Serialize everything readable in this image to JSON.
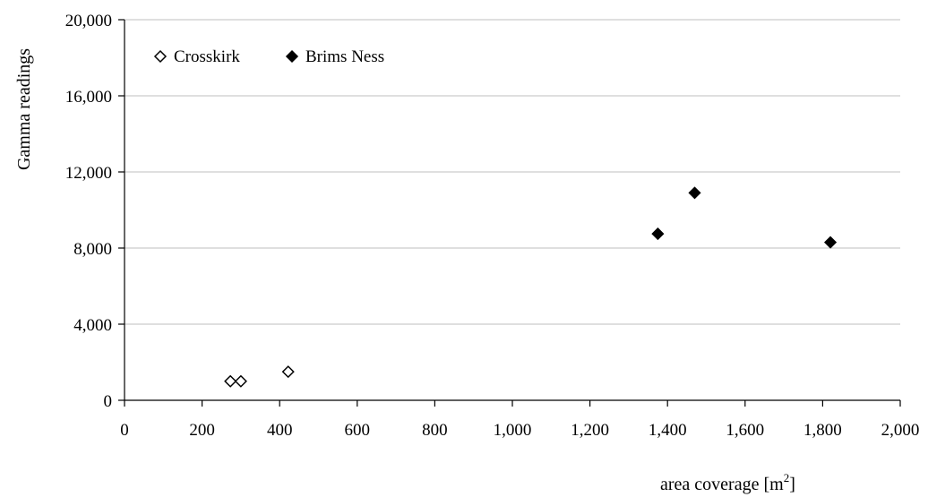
{
  "chart_data": {
    "type": "scatter",
    "title": "",
    "xlabel": "area coverage [m",
    "xlabel_superscript": "2",
    "xlabel_suffix": "]",
    "ylabel": "Gamma readings",
    "xlim": [
      0,
      2000
    ],
    "ylim": [
      0,
      20000
    ],
    "xticks": [
      0,
      200,
      400,
      600,
      800,
      1000,
      1200,
      1400,
      1600,
      1800,
      2000
    ],
    "yticks": [
      0,
      4000,
      8000,
      12000,
      16000,
      20000
    ],
    "xtick_labels": [
      "0",
      "200",
      "400",
      "600",
      "800",
      "1,000",
      "1,200",
      "1,400",
      "1,600",
      "1,800",
      "2,000"
    ],
    "ytick_labels": [
      "0",
      "4,000",
      "8,000",
      "12,000",
      "16,000",
      "20,000"
    ],
    "grid": "horizontal",
    "legend_position": "top-left",
    "series": [
      {
        "name": "Crosskirk",
        "marker": "diamond-open",
        "color": "#000000",
        "points": [
          {
            "x": 273,
            "y": 1000
          },
          {
            "x": 300,
            "y": 1000
          },
          {
            "x": 422,
            "y": 1500
          }
        ]
      },
      {
        "name": "Brims Ness",
        "marker": "diamond-filled",
        "color": "#000000",
        "points": [
          {
            "x": 1375,
            "y": 8750
          },
          {
            "x": 1470,
            "y": 10900
          },
          {
            "x": 1820,
            "y": 8300
          }
        ]
      }
    ]
  }
}
